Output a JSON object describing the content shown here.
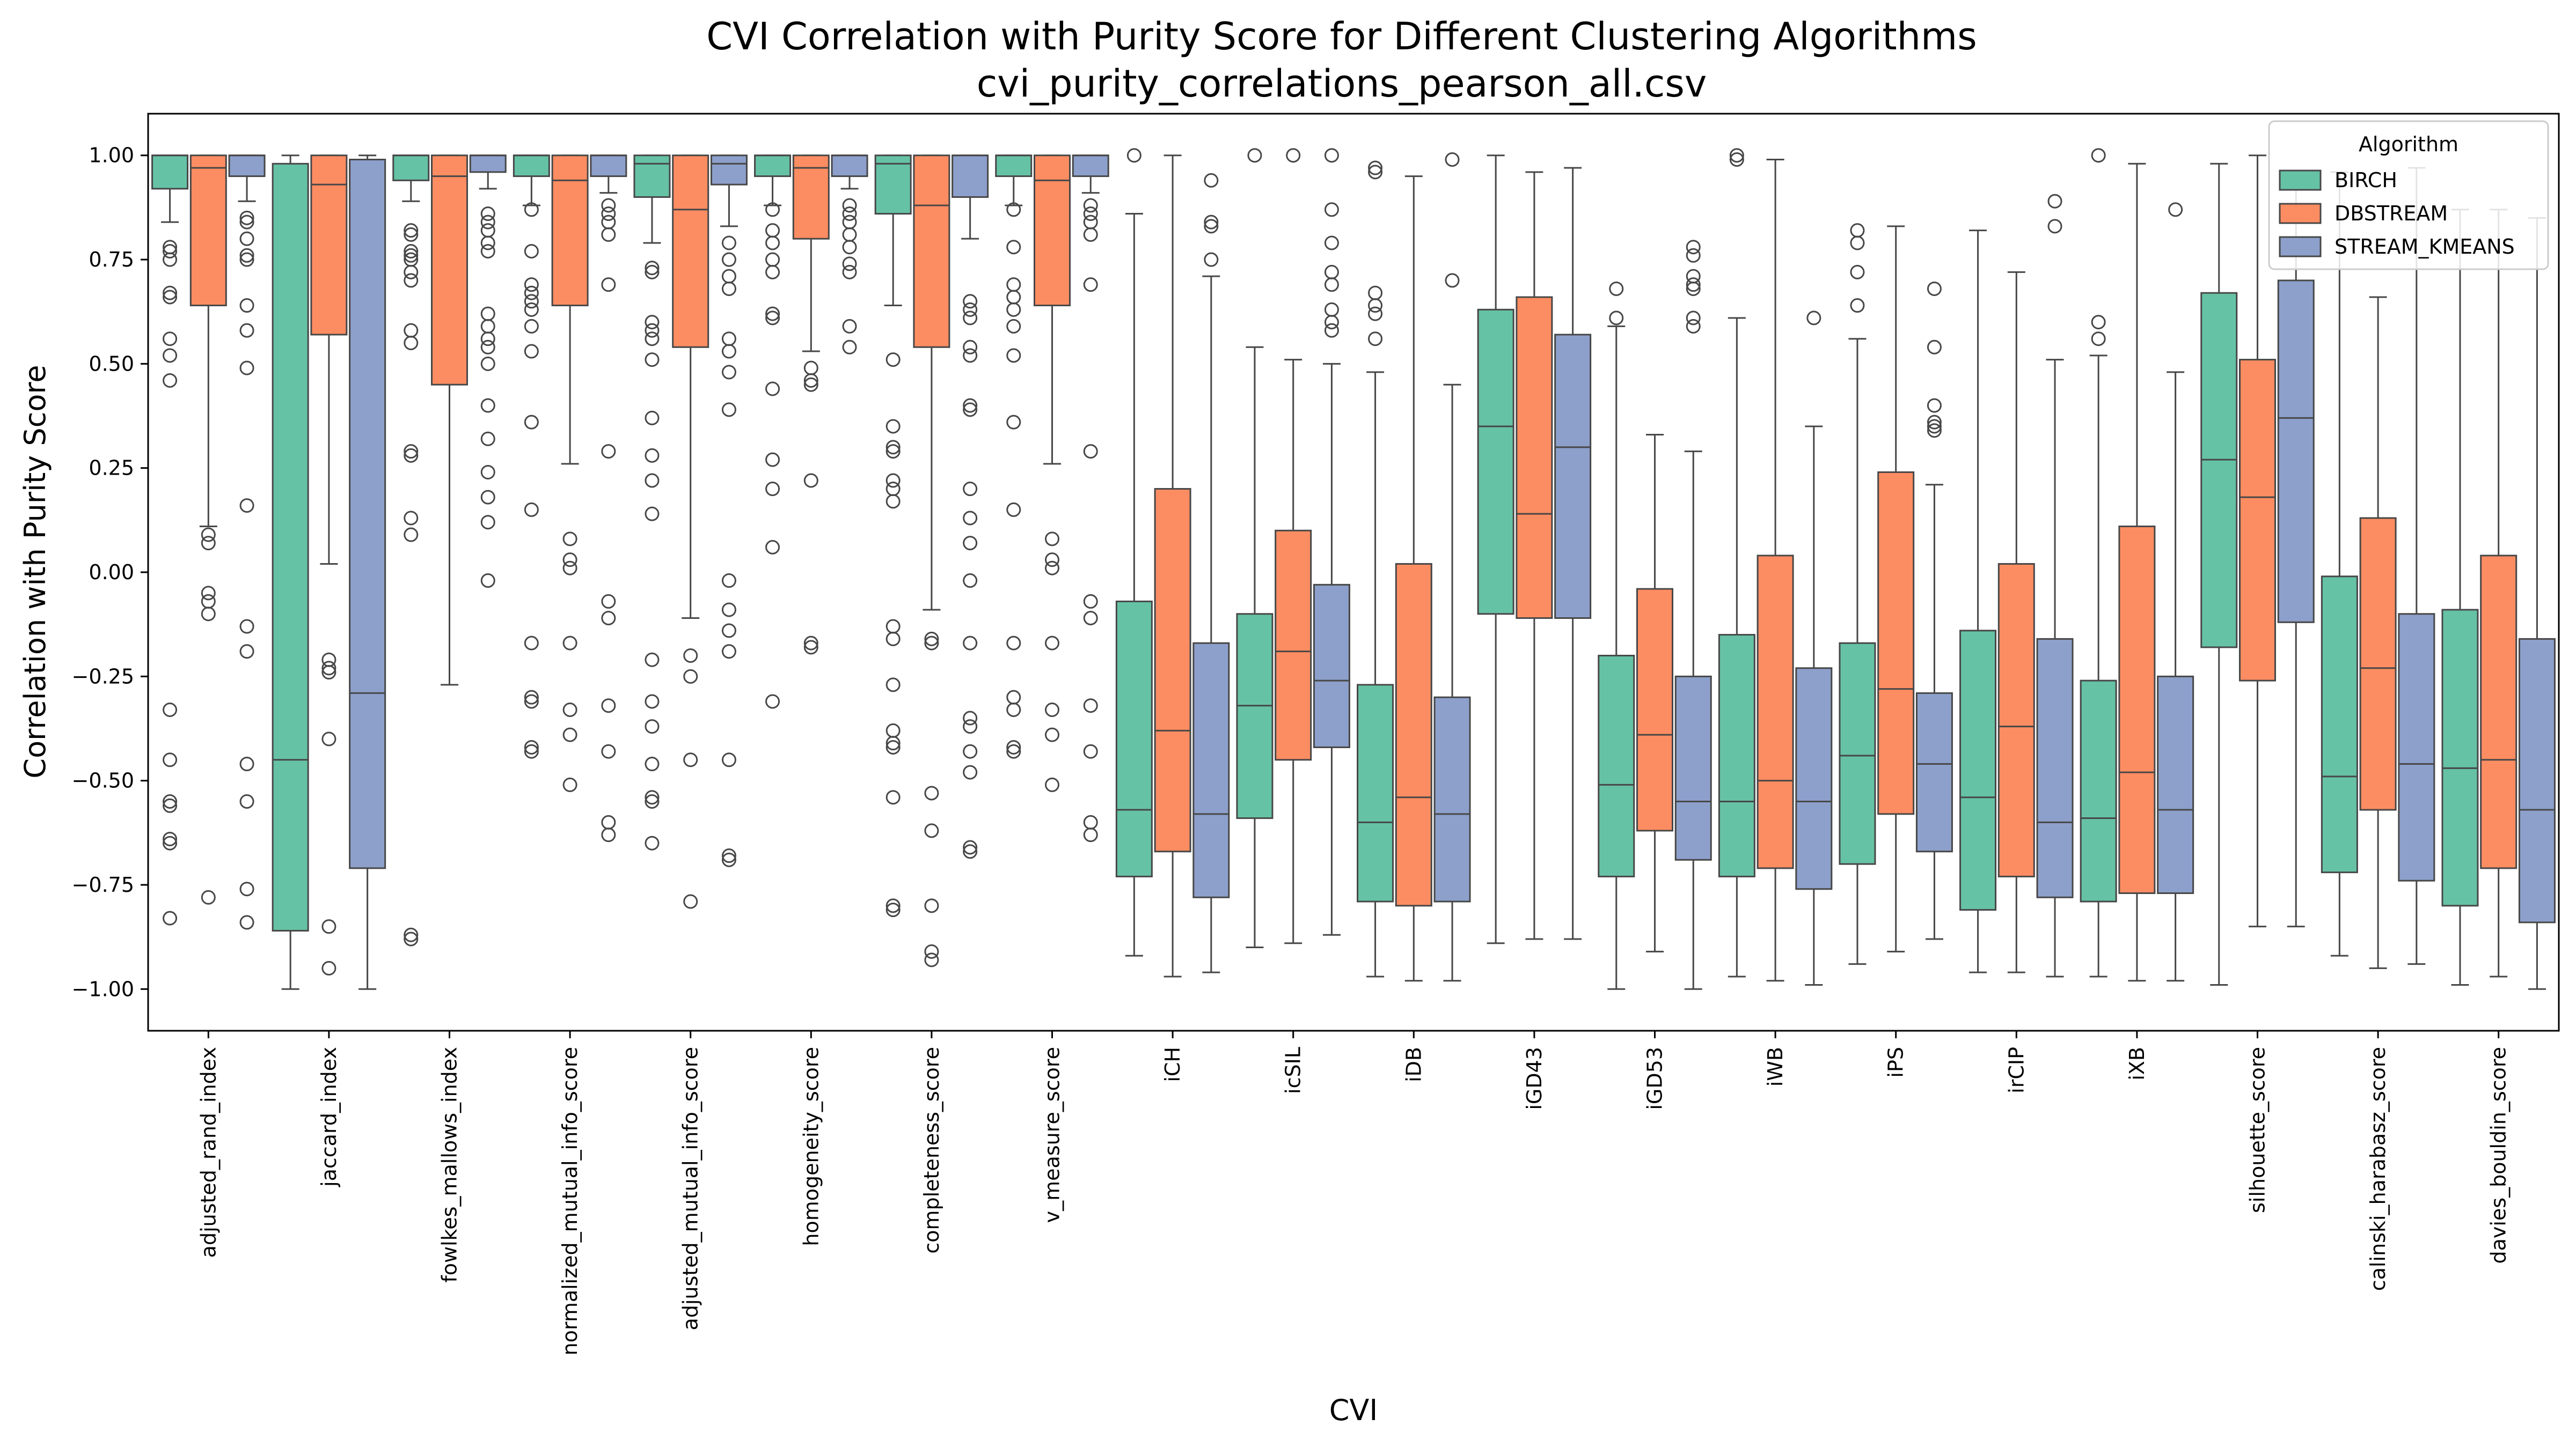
{
  "chart_data": {
    "type": "boxplot",
    "title": "CVI Correlation with Purity Score for Different Clustering Algorithms",
    "subtitle": "cvi_purity_correlations_pearson_all.csv",
    "xlabel": "CVI",
    "ylabel": "Correlation with Purity Score",
    "ylim": [
      -1.1,
      1.1
    ],
    "yticks": [
      1.0,
      0.75,
      0.5,
      0.25,
      0.0,
      -0.25,
      -0.5,
      -0.75,
      -1.0
    ],
    "ytick_labels": [
      "1.00",
      "0.75",
      "0.50",
      "0.25",
      "0.00",
      "−0.25",
      "−0.50",
      "−0.75",
      "−1.00"
    ],
    "grid": false,
    "legend": {
      "title": "Algorithm",
      "placement": "top-right",
      "entries": [
        "BIRCH",
        "DBSTREAM",
        "STREAM_KMEANS"
      ]
    },
    "colors": {
      "BIRCH": "#66c2a5",
      "DBSTREAM": "#fc8d62",
      "STREAM_KMEANS": "#8da0cb"
    },
    "categories": [
      "adjusted_rand_index",
      "jaccard_index",
      "fowlkes_mallows_index",
      "normalized_mutual_info_score",
      "adjusted_mutual_info_score",
      "homogeneity_score",
      "completeness_score",
      "v_measure_score",
      "iCH",
      "icSIL",
      "iDB",
      "iGD43",
      "iGD53",
      "iWB",
      "iPS",
      "irCIP",
      "iXB",
      "silhouette_score",
      "calinski_harabasz_score",
      "davies_bouldin_score"
    ],
    "series": [
      {
        "name": "BIRCH",
        "boxes": [
          {
            "lo": 0.84,
            "q1": 0.92,
            "med": 1.0,
            "q3": 1.0,
            "hi": 1.0,
            "out": [
              0.78,
              0.77,
              0.75,
              0.67,
              0.66,
              0.56,
              0.52,
              0.46,
              -0.33,
              -0.45,
              -0.55,
              -0.56,
              -0.64,
              -0.65,
              -0.83
            ]
          },
          {
            "lo": -1.0,
            "q1": -0.86,
            "med": -0.45,
            "q3": 0.98,
            "hi": 1.0,
            "out": []
          },
          {
            "lo": 0.89,
            "q1": 0.94,
            "med": 1.0,
            "q3": 1.0,
            "hi": 1.0,
            "out": [
              0.82,
              0.81,
              0.77,
              0.76,
              0.75,
              0.72,
              0.7,
              0.58,
              0.55,
              0.29,
              0.28,
              0.13,
              0.09,
              -0.88,
              -0.87
            ]
          },
          {
            "lo": 0.88,
            "q1": 0.95,
            "med": 1.0,
            "q3": 1.0,
            "hi": 1.0,
            "out": [
              0.87,
              0.77,
              0.69,
              0.67,
              0.65,
              0.63,
              0.59,
              0.53,
              0.36,
              0.15,
              -0.17,
              -0.3,
              -0.31,
              -0.42,
              -0.43
            ]
          },
          {
            "lo": 0.79,
            "q1": 0.9,
            "med": 0.98,
            "q3": 1.0,
            "hi": 1.0,
            "out": [
              0.73,
              0.72,
              0.6,
              0.58,
              0.56,
              0.51,
              0.37,
              0.28,
              0.22,
              0.14,
              -0.21,
              -0.31,
              -0.37,
              -0.46,
              -0.54,
              -0.55,
              -0.65
            ]
          },
          {
            "lo": 0.88,
            "q1": 0.95,
            "med": 1.0,
            "q3": 1.0,
            "hi": 1.0,
            "out": [
              0.87,
              0.82,
              0.79,
              0.75,
              0.72,
              0.62,
              0.61,
              0.44,
              0.27,
              0.2,
              0.06,
              -0.31
            ]
          },
          {
            "lo": 0.64,
            "q1": 0.86,
            "med": 0.98,
            "q3": 1.0,
            "hi": 1.0,
            "out": [
              0.51,
              0.35,
              0.3,
              0.29,
              0.22,
              0.2,
              0.17,
              -0.13,
              -0.16,
              -0.27,
              -0.38,
              -0.41,
              -0.42,
              -0.54,
              -0.8,
              -0.81
            ]
          },
          {
            "lo": 0.88,
            "q1": 0.95,
            "med": 1.0,
            "q3": 1.0,
            "hi": 1.0,
            "out": [
              0.87,
              0.78,
              0.69,
              0.66,
              0.63,
              0.59,
              0.52,
              0.36,
              0.15,
              -0.17,
              -0.3,
              -0.33,
              -0.42,
              -0.43
            ]
          },
          {
            "lo": -0.92,
            "q1": -0.73,
            "med": -0.57,
            "q3": -0.07,
            "hi": 0.86,
            "out": [
              1.0
            ]
          },
          {
            "lo": -0.9,
            "q1": -0.59,
            "med": -0.32,
            "q3": -0.1,
            "hi": 0.54,
            "out": [
              1.0
            ]
          },
          {
            "lo": -0.97,
            "q1": -0.79,
            "med": -0.6,
            "q3": -0.27,
            "hi": 0.48,
            "out": [
              0.97,
              0.96,
              0.67,
              0.64,
              0.62,
              0.56
            ]
          },
          {
            "lo": -0.89,
            "q1": -0.1,
            "med": 0.35,
            "q3": 0.63,
            "hi": 1.0,
            "out": []
          },
          {
            "lo": -1.0,
            "q1": -0.73,
            "med": -0.51,
            "q3": -0.2,
            "hi": 0.59,
            "out": [
              0.68,
              0.61
            ]
          },
          {
            "lo": -0.97,
            "q1": -0.73,
            "med": -0.55,
            "q3": -0.15,
            "hi": 0.61,
            "out": [
              1.0,
              0.99
            ]
          },
          {
            "lo": -0.94,
            "q1": -0.7,
            "med": -0.44,
            "q3": -0.17,
            "hi": 0.56,
            "out": [
              0.82,
              0.79,
              0.72,
              0.64
            ]
          },
          {
            "lo": -0.96,
            "q1": -0.81,
            "med": -0.54,
            "q3": -0.14,
            "hi": 0.82,
            "out": []
          },
          {
            "lo": -0.97,
            "q1": -0.79,
            "med": -0.59,
            "q3": -0.26,
            "hi": 0.52,
            "out": [
              1.0,
              0.6,
              0.56
            ]
          },
          {
            "lo": -0.99,
            "q1": -0.18,
            "med": 0.27,
            "q3": 0.67,
            "hi": 0.98,
            "out": []
          },
          {
            "lo": -0.92,
            "q1": -0.72,
            "med": -0.49,
            "q3": -0.01,
            "hi": 0.96,
            "out": []
          },
          {
            "lo": -0.99,
            "q1": -0.8,
            "med": -0.47,
            "q3": -0.09,
            "hi": 0.87,
            "out": []
          }
        ]
      },
      {
        "name": "DBSTREAM",
        "boxes": [
          {
            "lo": 0.11,
            "q1": 0.64,
            "med": 0.97,
            "q3": 1.0,
            "hi": 1.0,
            "out": [
              0.09,
              0.07,
              -0.05,
              -0.07,
              -0.1,
              -0.78
            ]
          },
          {
            "lo": 0.02,
            "q1": 0.57,
            "med": 0.93,
            "q3": 1.0,
            "hi": 1.0,
            "out": [
              -0.21,
              -0.23,
              -0.24,
              -0.4,
              -0.85,
              -0.95
            ]
          },
          {
            "lo": -0.27,
            "q1": 0.45,
            "med": 0.95,
            "q3": 1.0,
            "hi": 1.0,
            "out": []
          },
          {
            "lo": 0.26,
            "q1": 0.64,
            "med": 0.94,
            "q3": 1.0,
            "hi": 1.0,
            "out": [
              0.08,
              0.03,
              0.01,
              -0.17,
              -0.33,
              -0.39,
              -0.51
            ]
          },
          {
            "lo": -0.11,
            "q1": 0.54,
            "med": 0.87,
            "q3": 1.0,
            "hi": 1.0,
            "out": [
              -0.2,
              -0.25,
              -0.45,
              -0.79
            ]
          },
          {
            "lo": 0.53,
            "q1": 0.8,
            "med": 0.97,
            "q3": 1.0,
            "hi": 1.0,
            "out": [
              0.49,
              0.46,
              0.45,
              0.22,
              -0.17,
              -0.18
            ]
          },
          {
            "lo": -0.09,
            "q1": 0.54,
            "med": 0.88,
            "q3": 1.0,
            "hi": 1.0,
            "out": [
              -0.16,
              -0.17,
              -0.53,
              -0.62,
              -0.8,
              -0.91,
              -0.93
            ]
          },
          {
            "lo": 0.26,
            "q1": 0.64,
            "med": 0.94,
            "q3": 1.0,
            "hi": 1.0,
            "out": [
              0.08,
              0.03,
              0.01,
              -0.17,
              -0.33,
              -0.39,
              -0.51
            ]
          },
          {
            "lo": -0.97,
            "q1": -0.67,
            "med": -0.38,
            "q3": 0.2,
            "hi": 1.0,
            "out": []
          },
          {
            "lo": -0.89,
            "q1": -0.45,
            "med": -0.19,
            "q3": 0.1,
            "hi": 0.51,
            "out": [
              1.0
            ]
          },
          {
            "lo": -0.98,
            "q1": -0.8,
            "med": -0.54,
            "q3": 0.02,
            "hi": 0.95,
            "out": []
          },
          {
            "lo": -0.88,
            "q1": -0.11,
            "med": 0.14,
            "q3": 0.66,
            "hi": 0.96,
            "out": []
          },
          {
            "lo": -0.91,
            "q1": -0.62,
            "med": -0.39,
            "q3": -0.04,
            "hi": 0.33,
            "out": []
          },
          {
            "lo": -0.98,
            "q1": -0.71,
            "med": -0.5,
            "q3": 0.04,
            "hi": 0.99,
            "out": []
          },
          {
            "lo": -0.91,
            "q1": -0.58,
            "med": -0.28,
            "q3": 0.24,
            "hi": 0.83,
            "out": []
          },
          {
            "lo": -0.96,
            "q1": -0.73,
            "med": -0.37,
            "q3": 0.02,
            "hi": 0.72,
            "out": []
          },
          {
            "lo": -0.98,
            "q1": -0.77,
            "med": -0.48,
            "q3": 0.11,
            "hi": 0.98,
            "out": []
          },
          {
            "lo": -0.85,
            "q1": -0.26,
            "med": 0.18,
            "q3": 0.51,
            "hi": 1.0,
            "out": []
          },
          {
            "lo": -0.95,
            "q1": -0.57,
            "med": -0.23,
            "q3": 0.13,
            "hi": 0.66,
            "out": []
          },
          {
            "lo": -0.97,
            "q1": -0.71,
            "med": -0.45,
            "q3": 0.04,
            "hi": 0.87,
            "out": []
          }
        ]
      },
      {
        "name": "STREAM_KMEANS",
        "boxes": [
          {
            "lo": 0.89,
            "q1": 0.95,
            "med": 1.0,
            "q3": 1.0,
            "hi": 1.0,
            "out": [
              0.85,
              0.84,
              0.8,
              0.76,
              0.75,
              0.64,
              0.58,
              0.49,
              0.16,
              -0.13,
              -0.19,
              -0.46,
              -0.55,
              -0.76,
              -0.84
            ]
          },
          {
            "lo": -1.0,
            "q1": -0.71,
            "med": -0.29,
            "q3": 0.99,
            "hi": 1.0,
            "out": []
          },
          {
            "lo": 0.92,
            "q1": 0.96,
            "med": 1.0,
            "q3": 1.0,
            "hi": 1.0,
            "out": [
              0.86,
              0.84,
              0.82,
              0.79,
              0.77,
              0.62,
              0.59,
              0.56,
              0.54,
              0.5,
              0.4,
              0.32,
              0.24,
              0.18,
              0.12,
              -0.02
            ]
          },
          {
            "lo": 0.91,
            "q1": 0.95,
            "med": 1.0,
            "q3": 1.0,
            "hi": 1.0,
            "out": [
              0.88,
              0.86,
              0.84,
              0.81,
              0.69,
              0.29,
              -0.07,
              -0.11,
              -0.32,
              -0.43,
              -0.6,
              -0.63
            ]
          },
          {
            "lo": 0.83,
            "q1": 0.93,
            "med": 0.98,
            "q3": 1.0,
            "hi": 1.0,
            "out": [
              0.79,
              0.75,
              0.71,
              0.68,
              0.56,
              0.53,
              0.48,
              0.39,
              -0.02,
              -0.09,
              -0.14,
              -0.19,
              -0.45,
              -0.68,
              -0.69
            ]
          },
          {
            "lo": 0.92,
            "q1": 0.95,
            "med": 1.0,
            "q3": 1.0,
            "hi": 1.0,
            "out": [
              0.88,
              0.86,
              0.84,
              0.81,
              0.78,
              0.74,
              0.72,
              0.59,
              0.54
            ]
          },
          {
            "lo": 0.8,
            "q1": 0.9,
            "med": 1.0,
            "q3": 1.0,
            "hi": 1.0,
            "out": [
              0.65,
              0.63,
              0.61,
              0.54,
              0.52,
              0.4,
              0.39,
              0.2,
              0.13,
              0.07,
              -0.02,
              -0.17,
              -0.35,
              -0.37,
              -0.43,
              -0.48,
              -0.66,
              -0.67
            ]
          },
          {
            "lo": 0.91,
            "q1": 0.95,
            "med": 1.0,
            "q3": 1.0,
            "hi": 1.0,
            "out": [
              0.88,
              0.86,
              0.84,
              0.81,
              0.69,
              0.29,
              -0.07,
              -0.11,
              -0.32,
              -0.43,
              -0.6,
              -0.63
            ]
          },
          {
            "lo": -0.96,
            "q1": -0.78,
            "med": -0.58,
            "q3": -0.17,
            "hi": 0.71,
            "out": [
              0.94,
              0.84,
              0.83,
              0.75
            ]
          },
          {
            "lo": -0.87,
            "q1": -0.42,
            "med": -0.26,
            "q3": -0.03,
            "hi": 0.5,
            "out": [
              1.0,
              0.87,
              0.79,
              0.72,
              0.69,
              0.63,
              0.6,
              0.58
            ]
          },
          {
            "lo": -0.98,
            "q1": -0.79,
            "med": -0.58,
            "q3": -0.3,
            "hi": 0.45,
            "out": [
              0.99,
              0.7
            ]
          },
          {
            "lo": -0.88,
            "q1": -0.11,
            "med": 0.3,
            "q3": 0.57,
            "hi": 0.97,
            "out": []
          },
          {
            "lo": -1.0,
            "q1": -0.69,
            "med": -0.55,
            "q3": -0.25,
            "hi": 0.29,
            "out": [
              0.78,
              0.76,
              0.71,
              0.69,
              0.68,
              0.61,
              0.59
            ]
          },
          {
            "lo": -0.99,
            "q1": -0.76,
            "med": -0.55,
            "q3": -0.23,
            "hi": 0.35,
            "out": [
              0.61
            ]
          },
          {
            "lo": -0.88,
            "q1": -0.67,
            "med": -0.46,
            "q3": -0.29,
            "hi": 0.21,
            "out": [
              0.68,
              0.54,
              0.4,
              0.36,
              0.35,
              0.34
            ]
          },
          {
            "lo": -0.97,
            "q1": -0.78,
            "med": -0.6,
            "q3": -0.16,
            "hi": 0.51,
            "out": [
              0.89,
              0.83
            ]
          },
          {
            "lo": -0.98,
            "q1": -0.77,
            "med": -0.57,
            "q3": -0.25,
            "hi": 0.48,
            "out": [
              0.87
            ]
          },
          {
            "lo": -0.85,
            "q1": -0.12,
            "med": 0.37,
            "q3": 0.7,
            "hi": 0.95,
            "out": []
          },
          {
            "lo": -0.94,
            "q1": -0.74,
            "med": -0.46,
            "q3": -0.1,
            "hi": 0.97,
            "out": []
          },
          {
            "lo": -1.0,
            "q1": -0.84,
            "med": -0.57,
            "q3": -0.16,
            "hi": 0.85,
            "out": []
          }
        ]
      }
    ]
  }
}
